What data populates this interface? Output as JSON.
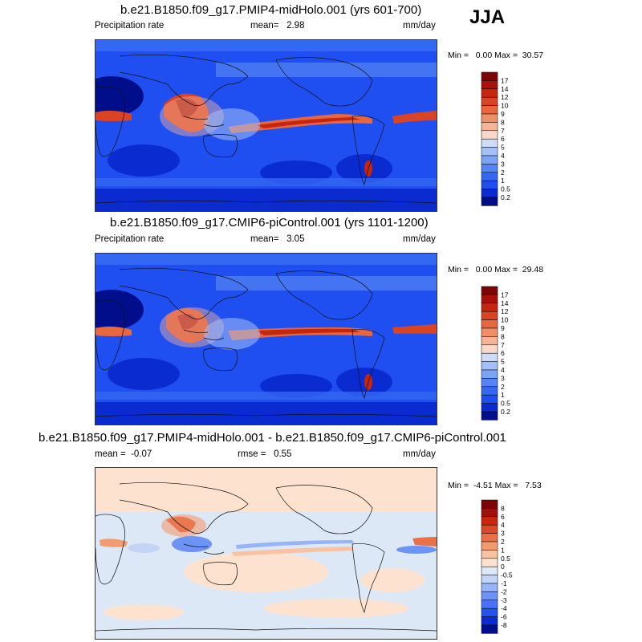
{
  "season": "JJA",
  "panels": [
    {
      "id": "top",
      "title": "b.e21.B1850.f09_g17.PMIP4-midHolo.001 (yrs 601-700)",
      "left_label": "Precipitation rate",
      "stat_label": "mean=",
      "stat_value": "2.98",
      "units": "mm/day",
      "minmax": "Min =   0.00 Max =  30.57",
      "palette": "precip",
      "colorbar_levels": [
        "17",
        "14",
        "12",
        "10",
        "9",
        "8",
        "7",
        "6",
        "5",
        "4",
        "3",
        "2",
        "1",
        "0.5",
        "0.2"
      ]
    },
    {
      "id": "middle",
      "title": "b.e21.B1850.f09_g17.CMIP6-piControl.001 (yrs 1101-1200)",
      "left_label": "Precipitation rate",
      "stat_label": "mean=",
      "stat_value": "3.05",
      "units": "mm/day",
      "minmax": "Min =   0.00 Max =  29.48",
      "palette": "precip",
      "colorbar_levels": [
        "17",
        "14",
        "12",
        "10",
        "9",
        "8",
        "7",
        "6",
        "5",
        "4",
        "3",
        "2",
        "1",
        "0.5",
        "0.2"
      ]
    },
    {
      "id": "bottom",
      "title": "b.e21.B1850.f09_g17.PMIP4-midHolo.001 - b.e21.B1850.f09_g17.CMIP6-piControl.001",
      "left_label": "mean =  -0.07",
      "stat_label": "rmse =",
      "stat_value": "0.55",
      "units": "mm/day",
      "minmax": "Min =  -4.51 Max =   7.53",
      "palette": "diff",
      "colorbar_levels": [
        "8",
        "6",
        "4",
        "3",
        "2",
        "1",
        "0.5",
        "0",
        "-0.5",
        "-1",
        "-2",
        "-3",
        "-4",
        "-6",
        "-8"
      ]
    }
  ],
  "colors": {
    "precip": [
      "#000e8c",
      "#0a2bd0",
      "#1f4ff0",
      "#3467f2",
      "#5585f4",
      "#7ca3f5",
      "#a3c0f7",
      "#cfdcf5",
      "#f8d8c8",
      "#f5b498",
      "#f08e68",
      "#e8673f",
      "#db4423",
      "#c7260e",
      "#a8120a",
      "#7d0505"
    ],
    "diff": [
      "#000e8c",
      "#0a2bd0",
      "#2452f0",
      "#4672f3",
      "#6d93f5",
      "#97b4f6",
      "#c3d4f7",
      "#dde8f7",
      "#fde3cf",
      "#f9c3a3",
      "#f39b70",
      "#ea7048",
      "#dd4826",
      "#c8260e",
      "#a0100a",
      "#7d0505"
    ]
  }
}
